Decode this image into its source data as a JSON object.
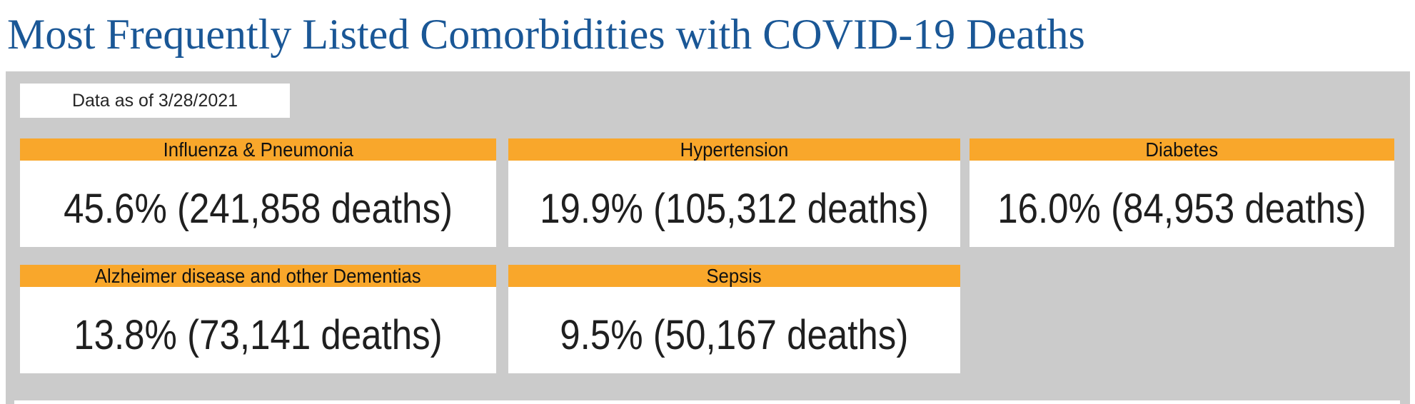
{
  "title": "Most Frequently Listed Comorbidities with COVID-19 Deaths",
  "panel": {
    "data_as_of": "Data as of 3/28/2021"
  },
  "cards": [
    {
      "label": "Influenza & Pneumonia",
      "value": "45.6% (241,858 deaths)",
      "percent": 45.6,
      "deaths": 241858
    },
    {
      "label": "Hypertension",
      "value": "19.9% (105,312 deaths)",
      "percent": 19.9,
      "deaths": 105312
    },
    {
      "label": "Diabetes",
      "value": "16.0% (84,953 deaths)",
      "percent": 16.0,
      "deaths": 84953
    },
    {
      "label": "Alzheimer disease and other Dementias",
      "value": "13.8% (73,141 deaths)",
      "percent": 13.8,
      "deaths": 73141
    },
    {
      "label": "Sepsis",
      "value": "9.5% (50,167 deaths)",
      "percent": 9.5,
      "deaths": 50167
    }
  ],
  "chart_data": {
    "type": "table",
    "title": "Most Frequently Listed Comorbidities with COVID-19 Deaths",
    "note": "Data as of 3/28/2021",
    "categories": [
      "Influenza & Pneumonia",
      "Hypertension",
      "Diabetes",
      "Alzheimer disease and other Dementias",
      "Sepsis"
    ],
    "series": [
      {
        "name": "percent",
        "values": [
          45.6,
          19.9,
          16.0,
          13.8,
          9.5
        ]
      },
      {
        "name": "deaths",
        "values": [
          241858,
          105312,
          84953,
          73141,
          50167
        ]
      }
    ],
    "layout": "five KPI cards in two rows on gray panel, orange header bars"
  },
  "colors": {
    "title_blue": "#1A5796",
    "header_orange": "#F9A72B",
    "panel_gray": "#CBCBCB",
    "text_ink": "#1F1F1F",
    "card_bg": "#FFFFFF"
  }
}
